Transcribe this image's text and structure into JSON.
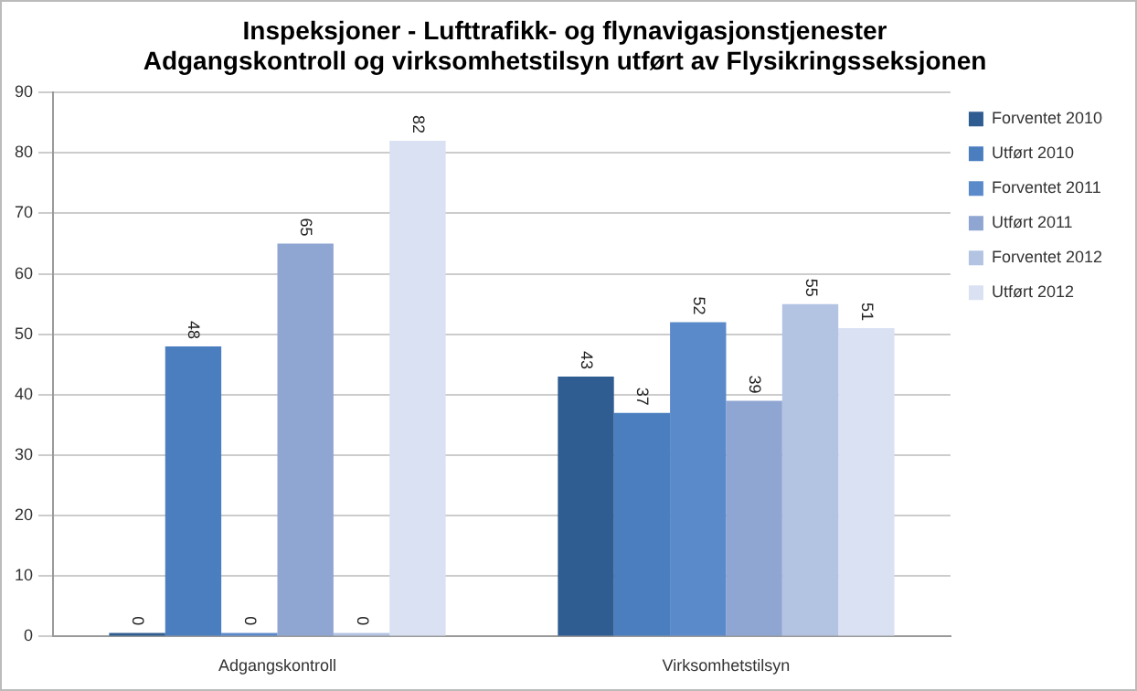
{
  "chart_data": {
    "type": "bar",
    "title": "Inspeksjoner - Lufttrafikk- og flynavigasjonstjenester\nAdgangskontroll og virksomhetstilsyn utført av Flysikringsseksjonen",
    "categories": [
      "Adgangskontroll",
      "Virksomhetstilsyn"
    ],
    "series": [
      {
        "name": "Forventet 2010",
        "color": "#2f5d92",
        "values": [
          0,
          43
        ]
      },
      {
        "name": "Utført 2010",
        "color": "#4a7ebf",
        "values": [
          48,
          37
        ]
      },
      {
        "name": "Forventet 2011",
        "color": "#5b8acb",
        "values": [
          0,
          52
        ]
      },
      {
        "name": "Utført 2011",
        "color": "#8fa5d2",
        "values": [
          65,
          39
        ]
      },
      {
        "name": "Forventet 2012",
        "color": "#b3c3e2",
        "values": [
          0,
          55
        ]
      },
      {
        "name": "Utført 2012",
        "color": "#d9e1f2",
        "values": [
          82,
          51
        ]
      }
    ],
    "ylim": [
      0,
      90
    ],
    "yticks": [
      0,
      10,
      20,
      30,
      40,
      50,
      60,
      70,
      80,
      90
    ],
    "grid": "y",
    "legend": "right",
    "data_labels": true
  }
}
